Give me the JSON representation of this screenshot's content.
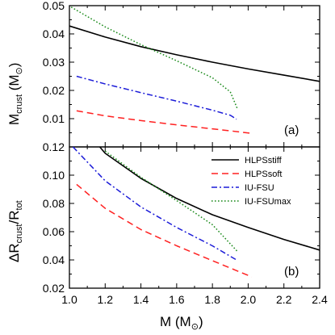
{
  "chart_data": [
    {
      "type": "line",
      "panel_label": "(a)",
      "ylabel": {
        "main": "M",
        "sub": "crust",
        "unit_open": " (M",
        "unit_symbol": "⊙",
        "unit_close": ")"
      },
      "xlim": [
        1.0,
        2.4
      ],
      "ylim": [
        0.0,
        0.05
      ],
      "yticks": [
        0.01,
        0.02,
        0.03,
        0.04,
        0.05
      ],
      "ytick_labels": [
        "0.01",
        "0.02",
        "0.03",
        "0.04",
        "0.05"
      ],
      "grid": false,
      "series": [
        {
          "name": "HLPSstiff",
          "color": "#000000",
          "dash": "solid",
          "x": [
            1.0,
            1.2,
            1.4,
            1.6,
            1.8,
            2.0,
            2.2,
            2.4
          ],
          "y": [
            0.0428,
            0.0389,
            0.0355,
            0.0326,
            0.03,
            0.0276,
            0.0254,
            0.0232
          ]
        },
        {
          "name": "HLPSsoft",
          "color": "#ff2020",
          "dash": "dashed",
          "x": [
            1.04,
            1.2,
            1.4,
            1.6,
            1.8,
            1.9,
            2.02
          ],
          "y": [
            0.0128,
            0.011,
            0.0093,
            0.0078,
            0.0064,
            0.0057,
            0.0048
          ]
        },
        {
          "name": "IU-FSU",
          "color": "#1c1cd8",
          "dash": "dashdot",
          "x": [
            1.04,
            1.2,
            1.4,
            1.6,
            1.8,
            1.9,
            1.935
          ],
          "y": [
            0.025,
            0.0223,
            0.0192,
            0.0162,
            0.013,
            0.0112,
            0.0098
          ]
        },
        {
          "name": "IU-FSUmax",
          "color": "#1a8a1a",
          "dash": "dotted",
          "x": [
            1.01,
            1.2,
            1.4,
            1.6,
            1.8,
            1.9,
            1.94
          ],
          "y": [
            0.0495,
            0.0425,
            0.0362,
            0.0305,
            0.0245,
            0.0195,
            0.0135
          ]
        }
      ]
    },
    {
      "type": "line",
      "panel_label": "(b)",
      "xlabel": {
        "main": "M (M",
        "symbol": "⊙",
        "close": ")"
      },
      "ylabel": {
        "delta": "ΔR",
        "sub1": "crust",
        "slash": "/R",
        "sub2": "tot"
      },
      "xlim": [
        1.0,
        2.4
      ],
      "ylim": [
        0.02,
        0.12
      ],
      "xticks": [
        1.0,
        1.2,
        1.4,
        1.6,
        1.8,
        2.0,
        2.2,
        2.4
      ],
      "xtick_labels": [
        "1.0",
        "1.2",
        "1.4",
        "1.6",
        "1.8",
        "2.0",
        "2.2",
        "2.4"
      ],
      "yticks": [
        0.02,
        0.04,
        0.06,
        0.08,
        0.1,
        0.12
      ],
      "ytick_labels": [
        "0.02",
        "0.04",
        "0.06",
        "0.08",
        "0.10",
        "0.12"
      ],
      "grid": false,
      "legend_position": "top-right",
      "series": [
        {
          "name": "HLPSstiff",
          "color": "#000000",
          "dash": "solid",
          "x": [
            1.17,
            1.2,
            1.4,
            1.6,
            1.8,
            2.0,
            2.2,
            2.4
          ],
          "y": [
            0.12,
            0.1155,
            0.0977,
            0.0835,
            0.072,
            0.063,
            0.0545,
            0.047
          ]
        },
        {
          "name": "HLPSsoft",
          "color": "#ff2020",
          "dash": "dashed",
          "x": [
            1.04,
            1.2,
            1.4,
            1.6,
            1.8,
            2.02
          ],
          "y": [
            0.0935,
            0.0765,
            0.0615,
            0.05,
            0.0395,
            0.028
          ]
        },
        {
          "name": "IU-FSU",
          "color": "#1c1cd8",
          "dash": "dashdot",
          "x": [
            1.02,
            1.2,
            1.4,
            1.6,
            1.8,
            1.935
          ],
          "y": [
            0.12,
            0.096,
            0.0775,
            0.063,
            0.05,
            0.04
          ]
        },
        {
          "name": "IU-FSUmax",
          "color": "#1a8a1a",
          "dash": "dotted",
          "x": [
            1.2,
            1.4,
            1.6,
            1.8,
            1.94
          ],
          "y": [
            0.117,
            0.0985,
            0.082,
            0.065,
            0.046
          ]
        }
      ]
    }
  ]
}
